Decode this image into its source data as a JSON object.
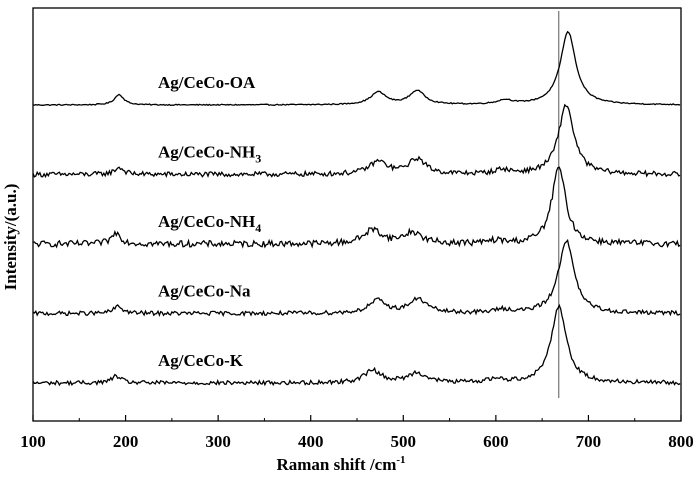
{
  "chart_data": {
    "type": "line",
    "xlabel": "Raman shift /cm",
    "xlabel_superscript": "-1",
    "ylabel": "Intensity/(a.u.)",
    "xlim": [
      100,
      800
    ],
    "x_ticks": [
      "100",
      "200",
      "300",
      "400",
      "500",
      "600",
      "700",
      "800"
    ],
    "y_ticks": [],
    "grid": false,
    "reference_line_x": 668,
    "series": [
      {
        "name": "Ag/CeCo-OA",
        "label_main": "Ag/CeCo-OA",
        "label_sub": "",
        "baseline": 4.0,
        "noise": 0.008,
        "peaks": [
          [
            193,
            0.15,
            6
          ],
          [
            473,
            0.18,
            10
          ],
          [
            515,
            0.2,
            10
          ],
          [
            610,
            0.06,
            10
          ],
          [
            678,
            1.05,
            10
          ]
        ]
      },
      {
        "name": "Ag/CeCo-NH3",
        "label_main": "Ag/CeCo-NH",
        "label_sub": "3",
        "baseline": 3.0,
        "noise": 0.035,
        "peaks": [
          [
            193,
            0.1,
            6
          ],
          [
            473,
            0.18,
            12
          ],
          [
            515,
            0.22,
            11
          ],
          [
            607,
            0.06,
            10
          ],
          [
            676,
            1.0,
            10
          ]
        ]
      },
      {
        "name": "Ag/CeCo-NH4",
        "label_main": "Ag/CeCo-NH",
        "label_sub": "4",
        "baseline": 2.0,
        "noise": 0.045,
        "peaks": [
          [
            190,
            0.16,
            6
          ],
          [
            467,
            0.2,
            12
          ],
          [
            510,
            0.16,
            12
          ],
          [
            600,
            0.04,
            10
          ],
          [
            668,
            1.1,
            9
          ]
        ]
      },
      {
        "name": "Ag/CeCo-Na",
        "label_main": "Ag/CeCo-Na",
        "label_sub": "",
        "baseline": 1.0,
        "noise": 0.03,
        "peaks": [
          [
            192,
            0.1,
            6
          ],
          [
            472,
            0.18,
            11
          ],
          [
            516,
            0.2,
            12
          ],
          [
            607,
            0.05,
            10
          ],
          [
            676,
            1.05,
            10
          ]
        ]
      },
      {
        "name": "Ag/CeCo-K",
        "label_main": "Ag/CeCo-K",
        "label_sub": "",
        "baseline": 0.0,
        "noise": 0.03,
        "peaks": [
          [
            190,
            0.1,
            6
          ],
          [
            467,
            0.18,
            11
          ],
          [
            515,
            0.14,
            12
          ],
          [
            600,
            0.05,
            10
          ],
          [
            668,
            1.1,
            10
          ]
        ]
      }
    ]
  }
}
